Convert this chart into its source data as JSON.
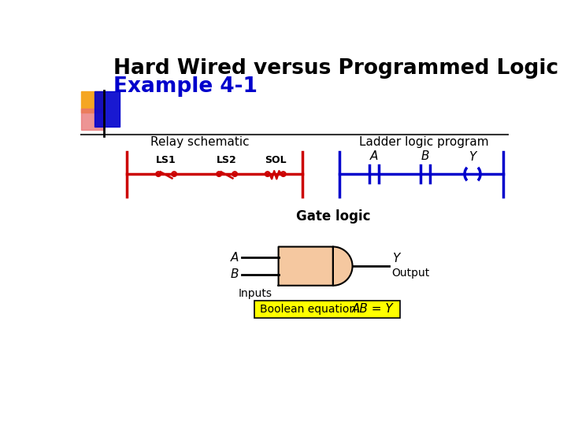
{
  "title_line1": "Hard Wired versus Programmed Logic",
  "title_line2": "Example 4-1",
  "title_color": "black",
  "subtitle_color": "#0000cc",
  "bg_color": "white",
  "relay_label": "Relay schematic",
  "relay_color": "#cc0000",
  "relay_contacts": [
    "LS1",
    "LS2",
    "SOL"
  ],
  "ladder_label": "Ladder logic program",
  "ladder_color": "#0000cc",
  "ladder_contacts": [
    "A",
    "B",
    "Y"
  ],
  "gate_label": "Gate logic",
  "gate_inputs": [
    "A",
    "B"
  ],
  "gate_output": "Y",
  "gate_output_label": "Output",
  "gate_input_label": "Inputs",
  "boolean_label": "Boolean equation:",
  "boolean_eq": "AB = Y",
  "boolean_bg": "#ffff00",
  "gate_fill": "#f5c8a0",
  "deco_yellow": "#f5a623",
  "deco_pink": "#e87070",
  "deco_blue": "#0000cc"
}
